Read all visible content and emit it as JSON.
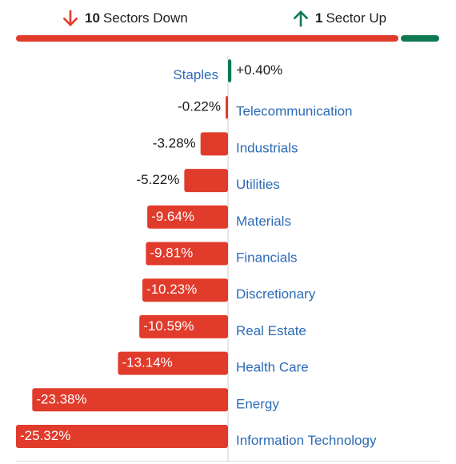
{
  "summary": {
    "down": {
      "count": "10",
      "label": "Sectors Down",
      "color": "#e13b2c",
      "icon": "arrow-down-icon"
    },
    "up": {
      "count": "1",
      "label": "Sector Up",
      "color": "#0f7a52",
      "icon": "arrow-up-icon"
    },
    "down_share": 0.909
  },
  "colors": {
    "negative": "#e13b2c",
    "positive": "#0f7a52",
    "label": "#2e6bb6",
    "value_dark": "#1a1a1a",
    "value_light": "#ffffff",
    "axis": "#cccccc"
  },
  "chart_data": {
    "type": "bar",
    "orientation": "horizontal",
    "categories": [
      "Staples",
      "Telecommunication",
      "Industrials",
      "Utilities",
      "Materials",
      "Financials",
      "Discretionary",
      "Real Estate",
      "Health Care",
      "Energy",
      "Information Technology"
    ],
    "values": [
      0.4,
      -0.22,
      -3.28,
      -5.22,
      -9.64,
      -9.81,
      -10.23,
      -10.59,
      -13.14,
      -23.38,
      -25.32
    ],
    "value_labels": [
      "+0.40%",
      "-0.22%",
      "-3.28%",
      "-5.22%",
      "-9.64%",
      "-9.81%",
      "-10.23%",
      "-10.59%",
      "-13.14%",
      "-23.38%",
      "-25.32%"
    ],
    "xlim": [
      -25.32,
      0.4
    ],
    "title": "",
    "xlabel": "",
    "ylabel": "",
    "grid": false,
    "legend": "none"
  }
}
